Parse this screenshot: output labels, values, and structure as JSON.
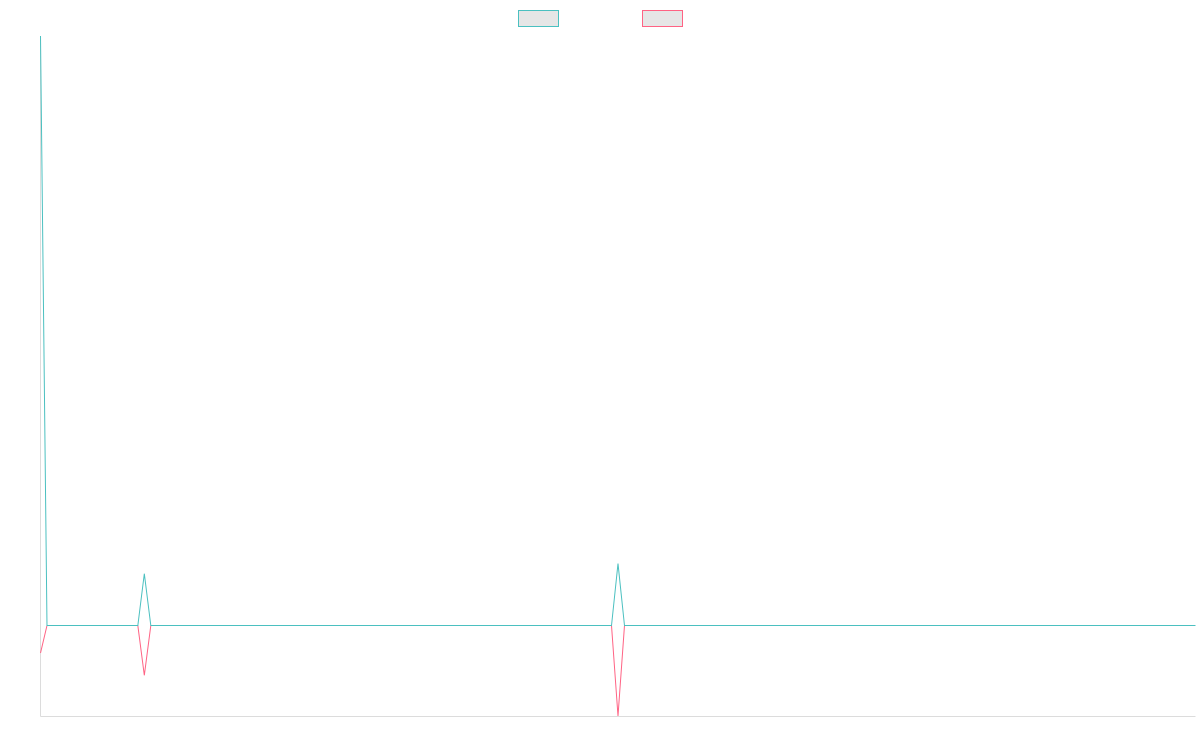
{
  "chart_data": {
    "type": "line",
    "title": "",
    "xlabel": "",
    "ylabel": "",
    "x": [
      0,
      1,
      2,
      3,
      4,
      5,
      6,
      7,
      8,
      9,
      10,
      11,
      12,
      13,
      14,
      15,
      16,
      17,
      18,
      19,
      20,
      21,
      22,
      23,
      24,
      25,
      26,
      27,
      28,
      29,
      30,
      31,
      32,
      33,
      34,
      35,
      36,
      37,
      38,
      39,
      40,
      41,
      42,
      43,
      44,
      45,
      46,
      47,
      48,
      49,
      50,
      51,
      52,
      53,
      54,
      55,
      56,
      57,
      58,
      59,
      60,
      61,
      62,
      63,
      64,
      65,
      66,
      67,
      68,
      69,
      70,
      71,
      72,
      73,
      74,
      75,
      76,
      77,
      78,
      79,
      80,
      81,
      82,
      83,
      84,
      85,
      86,
      87,
      88,
      89,
      90,
      91,
      92,
      93,
      94,
      95,
      96,
      97,
      98,
      99,
      100,
      101,
      102,
      103,
      104,
      105,
      106,
      107,
      108,
      109,
      110,
      111,
      112,
      113,
      114,
      115,
      116,
      117,
      118,
      119,
      120,
      121,
      122,
      123,
      124,
      125,
      126,
      127,
      128,
      129,
      130,
      131,
      132,
      133,
      134,
      135,
      136,
      137,
      138,
      139,
      140,
      141,
      142,
      143,
      144,
      145,
      146,
      147,
      148,
      149,
      150,
      151,
      152,
      153,
      154,
      155,
      156,
      157,
      158,
      159,
      160,
      161,
      162,
      163,
      164,
      165,
      166,
      167,
      168,
      169,
      170,
      171,
      172,
      173,
      174,
      175,
      176,
      177,
      178
    ],
    "series": [
      {
        "color": "#4bc0c0",
        "values": [
          58,
          0,
          0,
          0,
          0,
          0,
          0,
          0,
          0,
          0,
          0,
          0,
          0,
          0,
          0,
          0,
          5.1,
          0,
          0,
          0,
          0,
          0,
          0,
          0,
          0,
          0,
          0,
          0,
          0,
          0,
          0,
          0,
          0,
          0,
          0,
          0,
          0,
          0,
          0,
          0,
          0,
          0,
          0,
          0,
          0,
          0,
          0,
          0,
          0,
          0,
          0,
          0,
          0,
          0,
          0,
          0,
          0,
          0,
          0,
          0,
          0,
          0,
          0,
          0,
          0,
          0,
          0,
          0,
          0,
          0,
          0,
          0,
          0,
          0,
          0,
          0,
          0,
          0,
          0,
          0,
          0,
          0,
          0,
          0,
          0,
          0,
          0,
          0,
          0,
          6.1,
          0,
          0,
          0,
          0,
          0,
          0,
          0,
          0,
          0,
          0,
          0,
          0,
          0,
          0,
          0,
          0,
          0,
          0,
          0,
          0,
          0,
          0,
          0,
          0,
          0,
          0,
          0,
          0,
          0,
          0,
          0,
          0,
          0,
          0,
          0,
          0,
          0,
          0,
          0,
          0,
          0,
          0,
          0,
          0,
          0,
          0,
          0,
          0,
          0,
          0,
          0,
          0,
          0,
          0,
          0,
          0,
          0,
          0,
          0,
          0,
          0,
          0,
          0,
          0,
          0,
          0,
          0,
          0,
          0,
          0,
          0,
          0,
          0,
          0,
          0,
          0,
          0,
          0,
          0,
          0,
          0,
          0,
          0,
          0,
          0,
          0,
          0,
          0,
          0
        ]
      },
      {
        "color": "#ff6384",
        "values": [
          -2.7,
          0,
          0,
          0,
          0,
          0,
          0,
          0,
          0,
          0,
          0,
          0,
          0,
          0,
          0,
          0,
          -4.9,
          0,
          0,
          0,
          0,
          0,
          0,
          0,
          0,
          0,
          0,
          0,
          0,
          0,
          0,
          0,
          0,
          0,
          0,
          0,
          0,
          0,
          0,
          0,
          0,
          0,
          0,
          0,
          0,
          0,
          0,
          0,
          0,
          0,
          0,
          0,
          0,
          0,
          0,
          0,
          0,
          0,
          0,
          0,
          0,
          0,
          0,
          0,
          0,
          0,
          0,
          0,
          0,
          0,
          0,
          0,
          0,
          0,
          0,
          0,
          0,
          0,
          0,
          0,
          0,
          0,
          0,
          0,
          0,
          0,
          0,
          0,
          0,
          -8.9,
          0,
          0,
          0,
          0,
          0,
          0,
          0,
          0,
          0,
          0,
          0,
          0,
          0,
          0,
          0,
          0,
          0,
          0,
          0,
          0,
          0,
          0,
          0,
          0,
          0,
          0,
          0,
          0,
          0,
          0,
          0,
          0,
          0,
          0,
          0,
          0,
          0,
          0,
          0,
          0,
          0,
          0,
          0,
          0,
          0,
          0,
          0,
          0,
          0,
          0,
          0,
          0,
          0,
          0,
          0,
          0,
          0,
          0,
          0,
          0,
          0,
          0,
          0,
          0,
          0,
          0,
          0,
          0,
          0,
          0,
          0,
          0,
          0,
          0,
          0,
          0,
          0,
          0,
          0,
          0,
          0,
          0,
          0,
          0,
          0,
          0,
          0,
          0,
          0
        ]
      }
    ],
    "xlim": [
      0,
      178
    ],
    "ylim": [
      -8.9,
      58
    ],
    "grid": false,
    "legend_placement": "top-center",
    "legend_swatch_fill": "#e6e6e6",
    "axis_color": "#dcdcdc"
  }
}
